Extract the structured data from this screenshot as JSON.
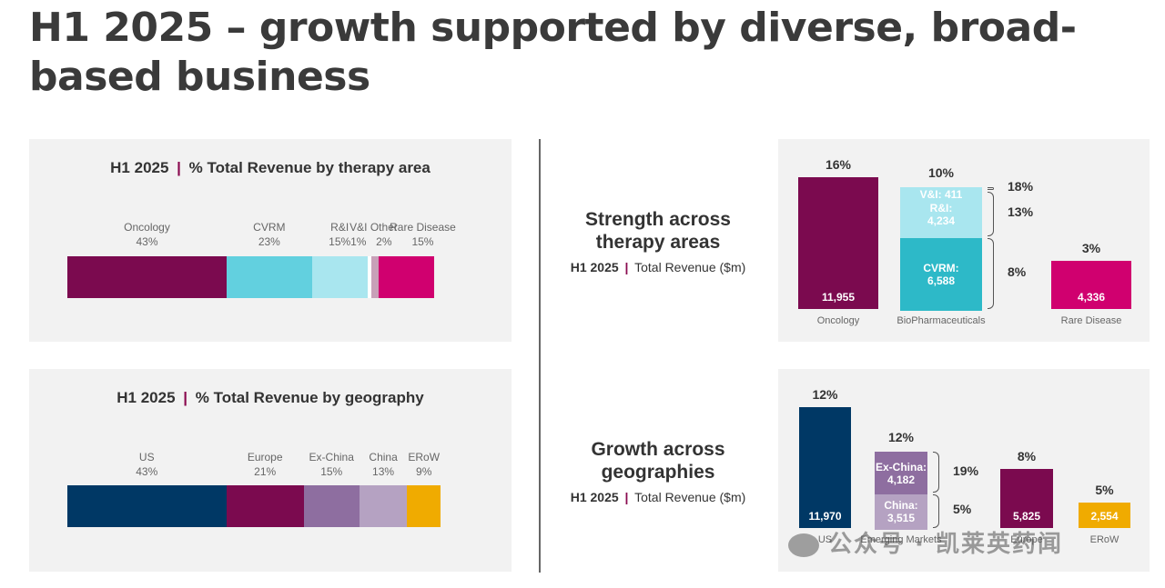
{
  "title": "H1 2025 – growth supported by diverse, broad-based business",
  "panels": {
    "therapy": {
      "year": "H1 2025",
      "sep": "|",
      "label": "% Total Revenue by therapy area"
    },
    "geo": {
      "year": "H1 2025",
      "sep": "|",
      "label": "% Total Revenue by geography"
    }
  },
  "side": {
    "therapy": {
      "heading": [
        "Strength across",
        "therapy areas"
      ],
      "year": "H1 2025",
      "sep": "|",
      "label": "Total Revenue ($m)"
    },
    "geo": {
      "heading": [
        "Growth across",
        "geographies"
      ],
      "year": "H1 2025",
      "sep": "|",
      "label": "Total Revenue ($m)"
    }
  },
  "watermark": "公众号 · 凯莱英药闻",
  "colors": {
    "oncology": "#7b0a4f",
    "cvrm": "#62d0df",
    "ri": "#a9e6ef",
    "vi": "#ffffff",
    "other": "#c8a0b8",
    "rare": "#d0006f",
    "us": "#003865",
    "europe": "#7b0a4f",
    "exchina": "#8e6ea0",
    "china": "#b5a2c2",
    "erow": "#f0ab00",
    "cvrm_dark": "#2db9c8"
  },
  "chart_data": [
    {
      "type": "bar",
      "orientation": "horizontal-stacked",
      "title": "H1 2025 | % Total Revenue by therapy area",
      "categories": [
        "Oncology",
        "CVRM",
        "R&I",
        "V&I",
        "Other",
        "Rare Disease"
      ],
      "values": [
        43,
        23,
        15,
        1,
        2,
        15
      ],
      "value_labels": [
        "43%",
        "23%",
        "15%",
        "1%",
        "2%",
        "15%"
      ],
      "unit": "%"
    },
    {
      "type": "bar",
      "orientation": "horizontal-stacked",
      "title": "H1 2025 | % Total Revenue by geography",
      "categories": [
        "US",
        "Europe",
        "Ex-China",
        "China",
        "ERoW"
      ],
      "values": [
        43,
        21,
        15,
        13,
        9
      ],
      "value_labels": [
        "43%",
        "21%",
        "15%",
        "13%",
        "9%"
      ],
      "unit": "%"
    },
    {
      "type": "bar",
      "title": "Strength across therapy areas",
      "subtitle": "H1 2025 | Total Revenue ($m)",
      "categories": [
        "Oncology",
        "BioPharmaceuticals",
        "Rare Disease"
      ],
      "bars": [
        {
          "category": "Oncology",
          "total_growth": "16%",
          "segments": [
            {
              "name": "",
              "value": 11955,
              "label": "11,955"
            }
          ]
        },
        {
          "category": "BioPharmaceuticals",
          "total_growth": "10%",
          "segments": [
            {
              "name": "CVRM:",
              "value": 6588,
              "label": "6,588",
              "growth": "8%"
            },
            {
              "name": "R&I:",
              "value": 4234,
              "label": "4,234",
              "growth": "13%"
            },
            {
              "name": "V&I:",
              "value": 411,
              "label": "411",
              "growth": "18%"
            }
          ]
        },
        {
          "category": "Rare Disease",
          "total_growth": "3%",
          "segments": [
            {
              "name": "",
              "value": 4336,
              "label": "4,336"
            }
          ]
        }
      ],
      "unit": "$m"
    },
    {
      "type": "bar",
      "title": "Growth across geographies",
      "subtitle": "H1 2025 | Total Revenue ($m)",
      "categories": [
        "US",
        "Emerging Markets",
        "Europe",
        "ERoW"
      ],
      "bars": [
        {
          "category": "US",
          "total_growth": "12%",
          "segments": [
            {
              "name": "",
              "value": 11970,
              "label": "11,970"
            }
          ]
        },
        {
          "category": "Emerging Markets",
          "total_growth": "12%",
          "segments": [
            {
              "name": "China:",
              "value": 3515,
              "label": "3,515",
              "growth": "5%"
            },
            {
              "name": "Ex-China:",
              "value": 4182,
              "label": "4,182",
              "growth": "19%"
            }
          ]
        },
        {
          "category": "Europe",
          "total_growth": "8%",
          "segments": [
            {
              "name": "",
              "value": 5825,
              "label": "5,825"
            }
          ]
        },
        {
          "category": "ERoW",
          "total_growth": "5%",
          "segments": [
            {
              "name": "",
              "value": 2554,
              "label": "2,554"
            }
          ]
        }
      ],
      "unit": "$m"
    }
  ]
}
